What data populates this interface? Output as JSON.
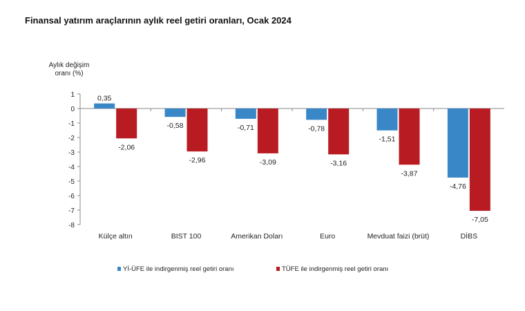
{
  "chart_data": {
    "type": "bar",
    "title": "Finansal yatırım araçlarının aylık reel getiri oranları, Ocak 2024",
    "ylabel": [
      "Aylık değişim",
      "oranı (%)"
    ],
    "xlabel": "",
    "ylim": [
      -8,
      1
    ],
    "yticks": [
      1,
      0,
      -1,
      -2,
      -3,
      -4,
      -5,
      -6,
      -7,
      -8
    ],
    "categories": [
      "Külçe altın",
      "BIST 100",
      "Amerikan Doları",
      "Euro",
      "Mevduat faizi (brüt)",
      "DİBS"
    ],
    "series": [
      {
        "name": "Yİ-ÜFE ile indirgenmiş reel getiri oranı",
        "color": "#3a87c8",
        "values": [
          0.35,
          -0.58,
          -0.71,
          -0.78,
          -1.51,
          -4.76
        ],
        "labels": [
          "0,35",
          "-0,58",
          "-0,71",
          "-0,78",
          "-1,51",
          "-4,76"
        ]
      },
      {
        "name": "TÜFE ile indirgenmiş reel getiri oranı",
        "color": "#b81c22",
        "values": [
          -2.06,
          -2.96,
          -3.09,
          -3.16,
          -3.87,
          -7.05
        ],
        "labels": [
          "-2,06",
          "-2,96",
          "-3,09",
          "-3,16",
          "-3,87",
          "-7,05"
        ]
      }
    ],
    "legend": "bottom",
    "grid": false
  }
}
